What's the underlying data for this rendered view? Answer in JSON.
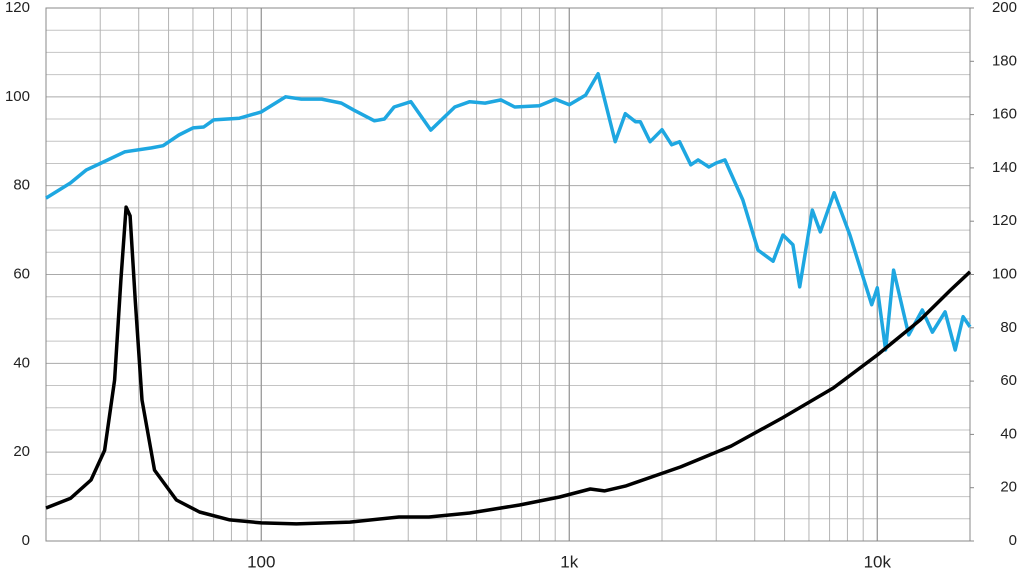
{
  "chart_data": {
    "type": "line",
    "xscale": "log",
    "grid": true,
    "xlim": [
      20,
      20000
    ],
    "xticks": [
      100,
      {
        "value": 1000,
        "label": "1k"
      },
      {
        "value": 10000,
        "label": "10k"
      }
    ],
    "xminor": [
      20,
      30,
      40,
      50,
      60,
      70,
      80,
      90,
      200,
      300,
      400,
      500,
      600,
      700,
      800,
      900,
      2000,
      3000,
      4000,
      5000,
      6000,
      7000,
      8000,
      9000,
      20000
    ],
    "ylim": [
      0,
      120
    ],
    "yticks": [
      0,
      20,
      40,
      60,
      80,
      100,
      120
    ],
    "yminor": [
      5,
      10,
      15,
      25,
      30,
      35,
      45,
      50,
      55,
      65,
      70,
      75,
      85,
      90,
      95,
      105,
      110,
      115
    ],
    "y2lim": [
      0,
      200
    ],
    "y2ticks": [
      0,
      20,
      40,
      60,
      80,
      100,
      120,
      140,
      160,
      180,
      200
    ],
    "series": [
      {
        "color": "#1ea7e1",
        "x": [
          20,
          24,
          27,
          30,
          36,
          44,
          48,
          54,
          60,
          65,
          70,
          85,
          100,
          120,
          135,
          157,
          182,
          200,
          233,
          251,
          270,
          306,
          355,
          425,
          475,
          533,
          600,
          665,
          800,
          900,
          1000,
          1130,
          1240,
          1410,
          1520,
          1640,
          1700,
          1830,
          2000,
          2150,
          2280,
          2480,
          2620,
          2840,
          3000,
          3200,
          3660,
          4100,
          4590,
          4940,
          5320,
          5600,
          6150,
          6530,
          7240,
          8150,
          9590,
          10000,
          10640,
          11300,
          12650,
          14000,
          15100,
          16600,
          17900,
          19000,
          20000
        ],
        "values": [
          77.2,
          80.6,
          83.5,
          85,
          87.6,
          88.5,
          89,
          91.4,
          93,
          93.2,
          94.8,
          95.2,
          96.6,
          100,
          99.5,
          99.5,
          98.6,
          97,
          94.6,
          95,
          97.7,
          98.9,
          92.5,
          97.7,
          98.9,
          98.6,
          99.3,
          97.7,
          98,
          99.5,
          98.2,
          100.4,
          105.2,
          89.9,
          96.2,
          94.4,
          94.4,
          89.9,
          92.6,
          89.2,
          89.9,
          84.7,
          85.8,
          84.2,
          85.1,
          85.8,
          76.8,
          65.5,
          63,
          68.9,
          66.7,
          57.2,
          74.5,
          69.6,
          78.4,
          68.9,
          53.2,
          57,
          43,
          61,
          46.4,
          52,
          47,
          51.6,
          43,
          50.5,
          48.2
        ]
      },
      {
        "color": "#000000",
        "axis": "y2",
        "x": [
          20,
          24,
          28,
          31,
          33.4,
          35,
          36.4,
          37.5,
          39,
          41,
          45,
          53,
          63,
          79,
          100,
          130,
          194,
          280,
          350,
          475,
          690,
          930,
          1170,
          1300,
          1520,
          2300,
          3350,
          4920,
          7200,
          10000,
          13800,
          17300,
          20000
        ],
        "values": [
          12.4,
          16,
          22.9,
          34,
          60.4,
          98,
          125.3,
          122,
          90,
          52.9,
          26.6,
          15.4,
          10.9,
          7.9,
          6.8,
          6.4,
          7.1,
          9,
          9,
          10.5,
          13.5,
          16.5,
          19.5,
          18.8,
          20.6,
          27.8,
          35.6,
          46.2,
          57.4,
          69.8,
          83,
          94.2,
          101
        ]
      }
    ]
  }
}
